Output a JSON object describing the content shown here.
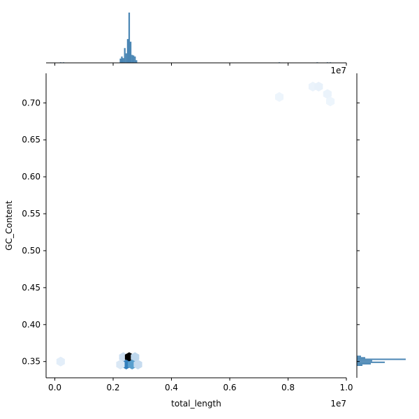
{
  "chart_data": {
    "type": "hexbin-jointplot",
    "xlabel": "total_length",
    "ylabel": "GC_Content",
    "xlim": [
      -0.03,
      1.0
    ],
    "ylim": [
      0.328,
      0.74
    ],
    "x_scale_label": "1e7",
    "x_ticks": [
      0.0,
      0.2,
      0.4,
      0.6,
      0.8,
      1.0
    ],
    "x_tick_labels": [
      "0.0",
      "0.2",
      "0.4",
      "0.6",
      "0.8",
      "1.0"
    ],
    "y_ticks": [
      0.35,
      0.4,
      0.45,
      0.5,
      0.55,
      0.6,
      0.65,
      0.7
    ],
    "y_tick_labels": [
      "0.35",
      "0.40",
      "0.45",
      "0.50",
      "0.55",
      "0.60",
      "0.65",
      "0.70"
    ],
    "hex_colormap": [
      "#f7fbff",
      "#c6dbef",
      "#6baed6",
      "#2171b5",
      "#08306b",
      "#000000"
    ],
    "hexbins": [
      {
        "x": 0.02,
        "y": 0.35,
        "level": 0.08
      },
      {
        "x": 0.235,
        "y": 0.356,
        "level": 0.18
      },
      {
        "x": 0.255,
        "y": 0.356,
        "level": 1.0
      },
      {
        "x": 0.275,
        "y": 0.356,
        "level": 0.22
      },
      {
        "x": 0.245,
        "y": 0.346,
        "level": 0.55
      },
      {
        "x": 0.265,
        "y": 0.346,
        "level": 0.45
      },
      {
        "x": 0.285,
        "y": 0.346,
        "level": 0.2
      },
      {
        "x": 0.225,
        "y": 0.346,
        "level": 0.12
      },
      {
        "x": 0.77,
        "y": 0.708,
        "level": 0.04
      },
      {
        "x": 0.885,
        "y": 0.722,
        "level": 0.05
      },
      {
        "x": 0.905,
        "y": 0.722,
        "level": 0.06
      },
      {
        "x": 0.935,
        "y": 0.712,
        "level": 0.05
      },
      {
        "x": 0.945,
        "y": 0.702,
        "level": 0.04
      }
    ],
    "marginal_x": {
      "color": "#4a86b4",
      "bins": [
        {
          "x": 0.02,
          "count": 1
        },
        {
          "x": 0.03,
          "count": 1
        },
        {
          "x": 0.225,
          "count": 8
        },
        {
          "x": 0.23,
          "count": 12
        },
        {
          "x": 0.235,
          "count": 9
        },
        {
          "x": 0.24,
          "count": 28
        },
        {
          "x": 0.245,
          "count": 18
        },
        {
          "x": 0.25,
          "count": 45
        },
        {
          "x": 0.255,
          "count": 95
        },
        {
          "x": 0.26,
          "count": 40
        },
        {
          "x": 0.265,
          "count": 15
        },
        {
          "x": 0.27,
          "count": 14
        },
        {
          "x": 0.275,
          "count": 12
        },
        {
          "x": 0.28,
          "count": 5
        },
        {
          "x": 0.77,
          "count": 1
        },
        {
          "x": 0.9,
          "count": 1
        },
        {
          "x": 0.935,
          "count": 1
        },
        {
          "x": 0.945,
          "count": 1
        }
      ]
    },
    "marginal_y": {
      "color": "#4a86b4",
      "bins": [
        {
          "y": 0.345,
          "count": 8
        },
        {
          "y": 0.347,
          "count": 20
        },
        {
          "y": 0.349,
          "count": 40
        },
        {
          "y": 0.351,
          "count": 22
        },
        {
          "y": 0.353,
          "count": 70
        },
        {
          "y": 0.355,
          "count": 12
        },
        {
          "y": 0.357,
          "count": 6
        }
      ]
    }
  }
}
